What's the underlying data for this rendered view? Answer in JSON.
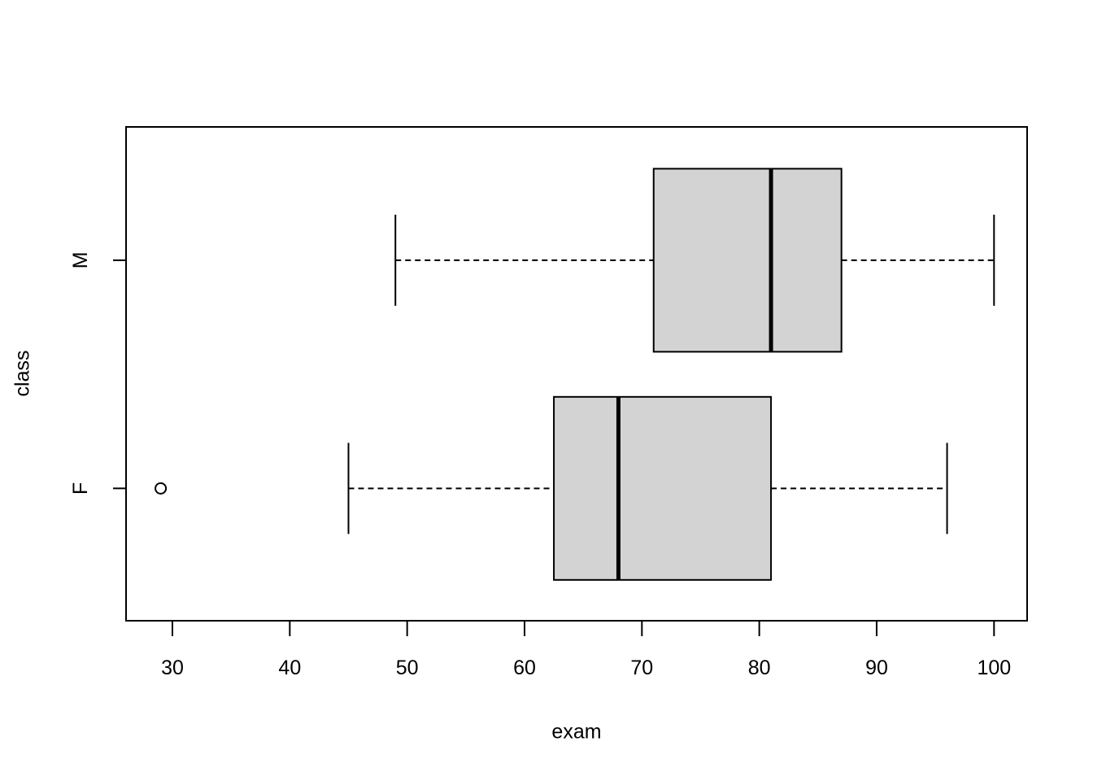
{
  "chart_data": {
    "type": "boxplot",
    "orientation": "horizontal",
    "title": "",
    "xlabel": "exam",
    "ylabel": "class",
    "xlim": [
      26.05,
      102.82
    ],
    "x_ticks": [
      30,
      40,
      50,
      60,
      70,
      80,
      90,
      100
    ],
    "categories": [
      "M",
      "F"
    ],
    "series": [
      {
        "name": "M",
        "whisker_low": 49,
        "q1": 71,
        "median": 81,
        "q3": 87,
        "whisker_high": 100,
        "outliers": []
      },
      {
        "name": "F",
        "whisker_low": 45,
        "q1": 62.5,
        "median": 68,
        "q3": 81,
        "whisker_high": 96,
        "outliers": [
          29
        ]
      }
    ],
    "grid": false,
    "legend": "none",
    "colors": {
      "box_fill": "#d3d3d3",
      "line": "#000000",
      "background": "#ffffff"
    }
  }
}
